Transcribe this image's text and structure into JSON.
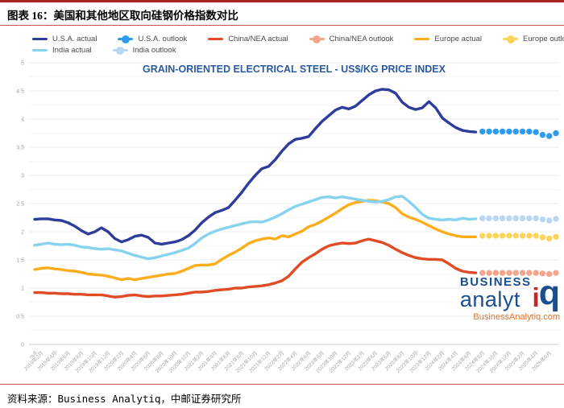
{
  "header": {
    "title": "图表 16：美国和其他地区取向硅钢价格指数对比"
  },
  "source": {
    "text": "资料来源：Business Analytiq，中邮证券研究所"
  },
  "watermark": {
    "line1": "BUSINESS",
    "line2": "analyt",
    "iq_i": "i",
    "iq_q": "q",
    "domain": "BusinessAnalytiq.com"
  },
  "colors": {
    "top_rule": "#a82421",
    "thin_rule": "#d0524c",
    "chart_title": "#2a5a9e",
    "axis_label": "#9e9e9e",
    "axis_line": "#cfcfcf",
    "grid_major": "#ededed",
    "grid_minor": "#f7f7f7",
    "logo_blue": "#1b4e8e",
    "logo_red": "#c1272d",
    "logo_orange": "#d9772e"
  },
  "legend": {
    "rows": [
      [
        {
          "id": "usa-actual",
          "label": "U.S.A. actual",
          "color": "#2e3d9b",
          "style": "line"
        },
        {
          "id": "usa-outlook",
          "label": "U.S.A. outlook",
          "color": "#2f9bef",
          "style": "dots"
        },
        {
          "id": "china-nea-actual",
          "label": "China/NEA actual",
          "color": "#e14b26",
          "style": "line"
        },
        {
          "id": "china-nea-outlook",
          "label": "China/NEA outlook",
          "color": "#f6a58c",
          "style": "dots"
        },
        {
          "id": "europe-actual",
          "label": "Europe actual",
          "color": "#fbad1b",
          "style": "line"
        },
        {
          "id": "europe-outlook",
          "label": "Europe outlook",
          "color": "#fcd45c",
          "style": "dots"
        }
      ],
      [
        {
          "id": "india-actual",
          "label": "India actual",
          "color": "#87d3ed",
          "style": "line"
        },
        {
          "id": "india-outlook",
          "label": "India outlook",
          "color": "#b9d7f2",
          "style": "dots"
        }
      ]
    ]
  },
  "chart_data": {
    "type": "line",
    "title": "GRAIN-ORIENTED ELECTRICAL STEEL - US$/KG PRICE INDEX",
    "ylabel": "US$/KG price index",
    "ylim": [
      0,
      5
    ],
    "y_tick_step": 0.5,
    "grid": "on",
    "legend_position": "top",
    "total_points": 79,
    "outlook_start_index": 67,
    "x_start": "2019年1月",
    "x_end": "2025年7月",
    "x_tick_labels": [
      "null",
      "2019年2月",
      "2019年4月",
      "2019年6月",
      "2019年8月",
      "2019年10月",
      "2019年12月",
      "2020年2月",
      "2020年4月",
      "2020年6月",
      "2020年8月",
      "2020年10月",
      "2020年12月",
      "2021年2月",
      "2021年4月",
      "2021年6月",
      "2021年8月",
      "2021年10月",
      "2021年12月",
      "2022年2月",
      "2022年4月",
      "2022年6月",
      "2022年8月",
      "2022年10月",
      "2022年12月",
      "2023年2月",
      "2023年4月",
      "2023年6月",
      "2023年8月",
      "2023年10月",
      "2023年12月",
      "2024年2月",
      "2024年4月",
      "2024年6月",
      "2024年8月",
      "2024年10月",
      "2024年12月",
      "2025年2月",
      "2025年4月",
      "2025年6月"
    ],
    "series": [
      {
        "id": "usa-actual",
        "name": "U.S.A. actual",
        "color": "#2e3d9b",
        "style": "line",
        "start_index": 0,
        "values": [
          2.22,
          2.23,
          2.23,
          2.21,
          2.2,
          2.16,
          2.1,
          2.02,
          1.96,
          2.0,
          2.07,
          2.0,
          1.88,
          1.82,
          1.86,
          1.92,
          1.94,
          1.9,
          1.8,
          1.78,
          1.8,
          1.82,
          1.86,
          1.93,
          2.03,
          2.16,
          2.26,
          2.34,
          2.38,
          2.43,
          2.56,
          2.7,
          2.86,
          3.0,
          3.12,
          3.16,
          3.28,
          3.43,
          3.56,
          3.64,
          3.66,
          3.69,
          3.83,
          3.96,
          4.06,
          4.16,
          4.21,
          4.18,
          4.23,
          4.33,
          4.43,
          4.5,
          4.53,
          4.52,
          4.46,
          4.3,
          4.21,
          4.17,
          4.2,
          4.31,
          4.2,
          4.02,
          3.93,
          3.85,
          3.8,
          3.78,
          3.77
        ]
      },
      {
        "id": "china-nea-actual",
        "name": "China/NEA actual",
        "color": "#e14b26",
        "style": "line",
        "start_index": 0,
        "values": [
          0.92,
          0.92,
          0.91,
          0.91,
          0.9,
          0.9,
          0.89,
          0.89,
          0.88,
          0.88,
          0.88,
          0.86,
          0.84,
          0.85,
          0.87,
          0.88,
          0.86,
          0.85,
          0.86,
          0.86,
          0.87,
          0.88,
          0.89,
          0.91,
          0.93,
          0.93,
          0.94,
          0.96,
          0.97,
          0.98,
          1.0,
          1.0,
          1.02,
          1.03,
          1.04,
          1.06,
          1.09,
          1.13,
          1.21,
          1.34,
          1.46,
          1.54,
          1.61,
          1.69,
          1.75,
          1.78,
          1.8,
          1.79,
          1.8,
          1.84,
          1.87,
          1.84,
          1.81,
          1.76,
          1.69,
          1.63,
          1.58,
          1.54,
          1.52,
          1.51,
          1.51,
          1.5,
          1.43,
          1.35,
          1.3,
          1.28,
          1.27
        ]
      },
      {
        "id": "europe-actual",
        "name": "Europe actual",
        "color": "#fbad1b",
        "style": "line",
        "start_index": 0,
        "values": [
          1.33,
          1.35,
          1.36,
          1.34,
          1.33,
          1.31,
          1.3,
          1.28,
          1.25,
          1.24,
          1.23,
          1.21,
          1.18,
          1.15,
          1.17,
          1.15,
          1.17,
          1.19,
          1.21,
          1.23,
          1.25,
          1.26,
          1.3,
          1.35,
          1.4,
          1.41,
          1.41,
          1.43,
          1.51,
          1.58,
          1.64,
          1.71,
          1.79,
          1.84,
          1.87,
          1.89,
          1.87,
          1.93,
          1.91,
          1.96,
          2.01,
          2.09,
          2.13,
          2.19,
          2.26,
          2.33,
          2.41,
          2.48,
          2.52,
          2.54,
          2.56,
          2.55,
          2.53,
          2.5,
          2.43,
          2.32,
          2.26,
          2.22,
          2.17,
          2.11,
          2.05,
          2.0,
          1.96,
          1.93,
          1.91,
          1.91,
          1.91
        ]
      },
      {
        "id": "india-actual",
        "name": "India actual",
        "color": "#87d3ed",
        "style": "line",
        "start_index": 0,
        "values": [
          1.76,
          1.78,
          1.8,
          1.78,
          1.77,
          1.78,
          1.76,
          1.73,
          1.72,
          1.7,
          1.69,
          1.7,
          1.68,
          1.66,
          1.62,
          1.58,
          1.55,
          1.52,
          1.54,
          1.57,
          1.6,
          1.63,
          1.67,
          1.71,
          1.79,
          1.89,
          1.96,
          2.01,
          2.05,
          2.08,
          2.11,
          2.14,
          2.17,
          2.18,
          2.17,
          2.21,
          2.26,
          2.32,
          2.39,
          2.45,
          2.49,
          2.53,
          2.57,
          2.61,
          2.62,
          2.6,
          2.62,
          2.6,
          2.58,
          2.56,
          2.54,
          2.53,
          2.54,
          2.57,
          2.62,
          2.63,
          2.54,
          2.43,
          2.31,
          2.24,
          2.22,
          2.21,
          2.22,
          2.21,
          2.24,
          2.22,
          2.23
        ]
      },
      {
        "id": "usa-outlook",
        "name": "U.S.A. outlook",
        "color": "#2f9bef",
        "style": "dots",
        "start_index": 67,
        "values": [
          3.78,
          3.78,
          3.78,
          3.78,
          3.78,
          3.78,
          3.78,
          3.78,
          3.77,
          3.72,
          3.7,
          3.75
        ]
      },
      {
        "id": "china-nea-outlook",
        "name": "China/NEA outlook",
        "color": "#f6a58c",
        "style": "dots",
        "start_index": 67,
        "values": [
          1.27,
          1.27,
          1.27,
          1.27,
          1.27,
          1.27,
          1.27,
          1.27,
          1.27,
          1.26,
          1.25,
          1.27
        ]
      },
      {
        "id": "europe-outlook",
        "name": "Europe outlook",
        "color": "#fcd45c",
        "style": "dots",
        "start_index": 67,
        "values": [
          1.93,
          1.93,
          1.93,
          1.93,
          1.93,
          1.93,
          1.93,
          1.93,
          1.93,
          1.9,
          1.88,
          1.91
        ]
      },
      {
        "id": "india-outlook",
        "name": "India outlook",
        "color": "#b9d7f2",
        "style": "dots",
        "start_index": 67,
        "values": [
          2.24,
          2.24,
          2.24,
          2.24,
          2.24,
          2.24,
          2.24,
          2.24,
          2.24,
          2.22,
          2.2,
          2.23
        ]
      }
    ]
  }
}
